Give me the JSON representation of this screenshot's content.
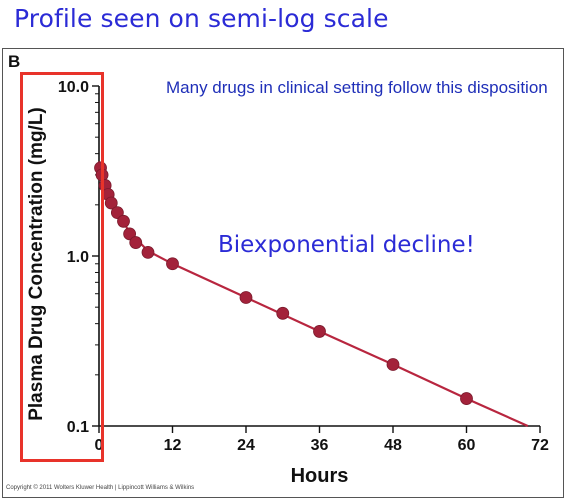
{
  "slide": {
    "title": "Profile seen on semi-log scale",
    "note": "Many drugs in clinical setting follow this disposition",
    "callout": "Biexponential decline!",
    "panel_letter": "B",
    "copyright": "Copyright © 2011 Wolters Kluwer Health | Lippincott Williams & Wilkins"
  },
  "colors": {
    "title_text": "#2b2bd6",
    "note_text": "#1f2fb8",
    "data_marker": "#a3223a",
    "fit_line": "#b8263f",
    "highlight_box": "#e8332a"
  },
  "chart_data": {
    "type": "scatter",
    "title": "",
    "xlabel": "Hours",
    "ylabel": "Plasma Drug Concentration (mg/L)",
    "xlim": [
      0,
      72
    ],
    "ylim": [
      0.1,
      10.0
    ],
    "y_scale": "log",
    "x_ticks": [
      0,
      12,
      24,
      36,
      48,
      60,
      72
    ],
    "y_ticks": [
      0.1,
      1.0,
      10.0
    ],
    "y_tick_labels": [
      "0.1",
      "1.0",
      "10.0"
    ],
    "grid": false,
    "series": [
      {
        "points": [
          {
            "x": 0.25,
            "y": 3.3
          },
          {
            "x": 0.5,
            "y": 3.0
          },
          {
            "x": 1.0,
            "y": 2.6
          },
          {
            "x": 1.5,
            "y": 2.3
          },
          {
            "x": 2.0,
            "y": 2.05
          },
          {
            "x": 3.0,
            "y": 1.8
          },
          {
            "x": 4.0,
            "y": 1.6
          },
          {
            "x": 5.0,
            "y": 1.35
          },
          {
            "x": 6.0,
            "y": 1.2
          },
          {
            "x": 8.0,
            "y": 1.05
          },
          {
            "x": 12.0,
            "y": 0.9
          },
          {
            "x": 24.0,
            "y": 0.57
          },
          {
            "x": 30.0,
            "y": 0.46
          },
          {
            "x": 36.0,
            "y": 0.36
          },
          {
            "x": 48.0,
            "y": 0.23
          },
          {
            "x": 60.0,
            "y": 0.145
          }
        ],
        "fit_line": [
          {
            "x": 0.0,
            "y": 3.6
          },
          {
            "x": 0.5,
            "y": 3.0
          },
          {
            "x": 1.0,
            "y": 2.6
          },
          {
            "x": 2.0,
            "y": 2.1
          },
          {
            "x": 3.0,
            "y": 1.8
          },
          {
            "x": 5.0,
            "y": 1.38
          },
          {
            "x": 8.0,
            "y": 1.07
          },
          {
            "x": 12.0,
            "y": 0.9
          },
          {
            "x": 24.0,
            "y": 0.57
          },
          {
            "x": 36.0,
            "y": 0.36
          },
          {
            "x": 48.0,
            "y": 0.23
          },
          {
            "x": 60.0,
            "y": 0.145
          },
          {
            "x": 70.0,
            "y": 0.1
          }
        ]
      }
    ]
  }
}
